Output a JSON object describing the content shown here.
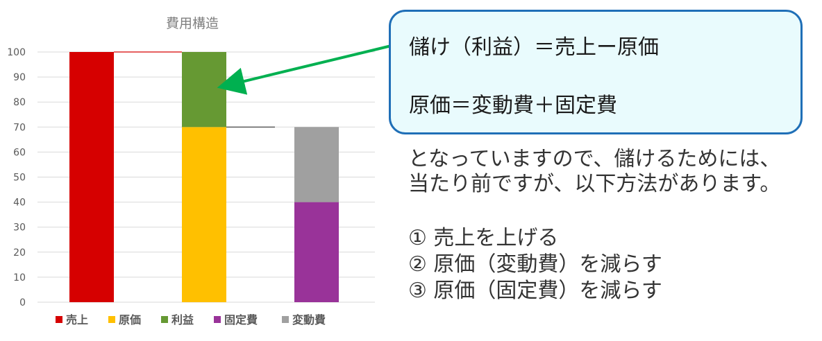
{
  "chart_data": {
    "type": "bar",
    "stacked": true,
    "title": "費用構造",
    "ylim": [
      0,
      100
    ],
    "yticks": [
      0,
      10,
      20,
      30,
      40,
      50,
      60,
      70,
      80,
      90,
      100
    ],
    "grid": true,
    "legend_position": "bottom",
    "bars": [
      {
        "segments": [
          {
            "series": "売上",
            "from": 0,
            "to": 100
          }
        ]
      },
      {
        "segments": [
          {
            "series": "原価",
            "from": 0,
            "to": 70
          },
          {
            "series": "利益",
            "from": 70,
            "to": 100
          }
        ]
      },
      {
        "segments": [
          {
            "series": "固定費",
            "from": 0,
            "to": 40
          },
          {
            "series": "変動費",
            "from": 40,
            "to": 70
          }
        ]
      }
    ],
    "connectors": [
      {
        "from_bar": 0,
        "to_bar": 1,
        "value": 100,
        "color": "#d60000"
      },
      {
        "from_bar": 1,
        "to_bar": 2,
        "value": 70,
        "color": "#333333"
      }
    ],
    "legend": [
      {
        "name": "売上",
        "color": "#d60000"
      },
      {
        "name": "原価",
        "color": "#ffc000"
      },
      {
        "name": "利益",
        "color": "#669933"
      },
      {
        "name": "固定費",
        "color": "#993399"
      },
      {
        "name": "変動費",
        "color": "#a0a0a0"
      }
    ],
    "arrow_color": "#00b050"
  },
  "callout": {
    "line1": "儲け（利益）＝売上ー原価",
    "line2": "原価＝変動費＋固定費"
  },
  "body": {
    "line1": "となっていますので、儲けるためには、",
    "line2": "当たり前ですが、以下方法があります。"
  },
  "methods": [
    "①  売上を上げる",
    "②  原価（変動費）を減らす",
    "③  原価（固定費）を減らす"
  ]
}
